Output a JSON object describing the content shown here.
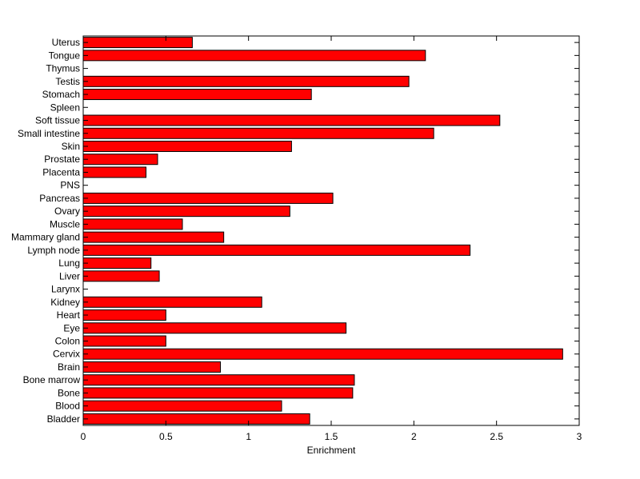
{
  "chart_data": {
    "type": "bar",
    "orientation": "horizontal",
    "title": "",
    "xlabel": "Enrichment",
    "ylabel": "",
    "xlim": [
      0,
      3
    ],
    "xticks": [
      "0",
      "0.5",
      "1",
      "1.5",
      "2",
      "2.5",
      "3"
    ],
    "grid": false,
    "bar_color": "#ff0000",
    "bar_edge_color": "#000000",
    "categories": [
      "Uterus",
      "Tongue",
      "Thymus",
      "Testis",
      "Stomach",
      "Spleen",
      "Soft tissue",
      "Small intestine",
      "Skin",
      "Prostate",
      "Placenta",
      "PNS",
      "Pancreas",
      "Ovary",
      "Muscle",
      "Mammary gland",
      "Lymph node",
      "Lung",
      "Liver",
      "Larynx",
      "Kidney",
      "Heart",
      "Eye",
      "Colon",
      "Cervix",
      "Brain",
      "Bone marrow",
      "Bone",
      "Blood",
      "Bladder"
    ],
    "values": [
      0.66,
      2.07,
      0,
      1.97,
      1.38,
      0,
      2.52,
      2.12,
      1.26,
      0.45,
      0.38,
      0,
      1.51,
      1.25,
      0.6,
      0.85,
      2.34,
      0.41,
      0.46,
      0,
      1.08,
      0.5,
      1.59,
      0.5,
      2.9,
      0.83,
      1.64,
      1.63,
      1.2,
      1.37
    ]
  }
}
